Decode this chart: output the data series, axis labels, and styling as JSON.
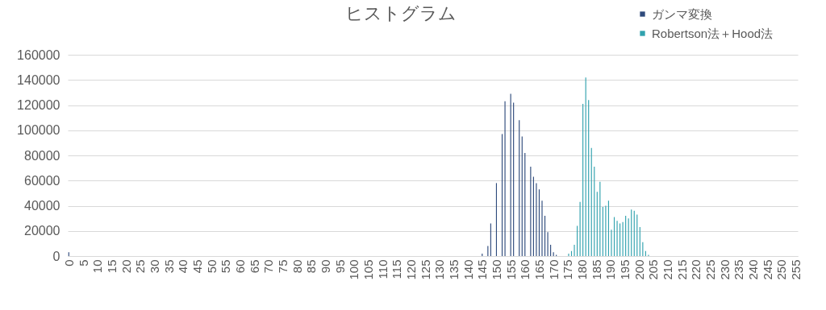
{
  "chart_data": {
    "type": "bar",
    "title": "ヒストグラム",
    "categories": [
      "0",
      null,
      null,
      null,
      null,
      "5",
      null,
      null,
      null,
      null,
      "10",
      null,
      null,
      null,
      null,
      "15",
      null,
      null,
      null,
      null,
      "20",
      null,
      null,
      null,
      null,
      "25",
      null,
      null,
      null,
      null,
      "30",
      null,
      null,
      null,
      null,
      "35",
      null,
      null,
      null,
      null,
      "40",
      null,
      null,
      null,
      null,
      "45",
      null,
      null,
      null,
      null,
      "50",
      null,
      null,
      null,
      null,
      "55",
      null,
      null,
      null,
      null,
      "60",
      null,
      null,
      null,
      null,
      "65",
      null,
      null,
      null,
      null,
      "70",
      null,
      null,
      null,
      null,
      "75",
      null,
      null,
      null,
      null,
      "80",
      null,
      null,
      null,
      null,
      "85",
      null,
      null,
      null,
      null,
      "90",
      null,
      null,
      null,
      null,
      "95",
      null,
      null,
      null,
      null,
      "100",
      null,
      null,
      null,
      null,
      "105",
      null,
      null,
      null,
      null,
      "110",
      null,
      null,
      null,
      null,
      "115",
      null,
      null,
      null,
      null,
      "120",
      null,
      null,
      null,
      null,
      "125",
      null,
      null,
      null,
      null,
      "130",
      null,
      null,
      null,
      null,
      "135",
      null,
      null,
      null,
      null,
      "140",
      null,
      null,
      null,
      null,
      "145",
      null,
      null,
      null,
      null,
      "150",
      null,
      null,
      null,
      null,
      "155",
      null,
      null,
      null,
      null,
      "160",
      null,
      null,
      null,
      null,
      "165",
      null,
      null,
      null,
      null,
      "170",
      null,
      null,
      null,
      null,
      "175",
      null,
      null,
      null,
      null,
      "180",
      null,
      null,
      null,
      null,
      "185",
      null,
      null,
      null,
      null,
      "190",
      null,
      null,
      null,
      null,
      "195",
      null,
      null,
      null,
      null,
      "200",
      null,
      null,
      null,
      null,
      "205",
      null,
      null,
      null,
      null,
      "210",
      null,
      null,
      null,
      null,
      "215",
      null,
      null,
      null,
      null,
      "220",
      null,
      null,
      null,
      null,
      "225",
      null,
      null,
      null,
      null,
      "230",
      null,
      null,
      null,
      null,
      "235",
      null,
      null,
      null,
      null,
      "240",
      null,
      null,
      null,
      null,
      "245",
      null,
      null,
      null,
      null,
      "250",
      null,
      null,
      null,
      null,
      "255"
    ],
    "series": [
      {
        "name": "ガンマ変換",
        "color": "#2f4b7c",
        "values": [
          3000,
          0,
          0,
          0,
          0,
          0,
          0,
          0,
          0,
          0,
          0,
          0,
          0,
          0,
          0,
          0,
          0,
          0,
          0,
          0,
          0,
          0,
          0,
          0,
          0,
          0,
          0,
          0,
          0,
          0,
          0,
          0,
          0,
          0,
          0,
          0,
          0,
          0,
          0,
          0,
          0,
          0,
          0,
          0,
          0,
          0,
          0,
          0,
          0,
          0,
          0,
          0,
          0,
          0,
          0,
          0,
          0,
          0,
          0,
          0,
          0,
          0,
          0,
          0,
          0,
          0,
          0,
          0,
          0,
          0,
          0,
          0,
          0,
          0,
          0,
          0,
          0,
          0,
          0,
          0,
          0,
          0,
          0,
          0,
          0,
          0,
          0,
          0,
          0,
          0,
          0,
          0,
          0,
          0,
          0,
          0,
          0,
          0,
          0,
          0,
          0,
          0,
          0,
          0,
          0,
          0,
          0,
          0,
          0,
          0,
          0,
          0,
          0,
          0,
          0,
          0,
          0,
          0,
          0,
          0,
          0,
          0,
          0,
          0,
          0,
          0,
          0,
          0,
          0,
          0,
          0,
          0,
          0,
          0,
          0,
          0,
          0,
          0,
          0,
          0,
          0,
          0,
          0,
          0,
          0,
          2000,
          0,
          8000,
          26000,
          0,
          58000,
          0,
          97000,
          123000,
          0,
          129000,
          122000,
          0,
          108000,
          95000,
          82000,
          0,
          71000,
          63000,
          58000,
          53000,
          44000,
          32000,
          19000,
          9000,
          3000,
          1000,
          0,
          0,
          0,
          0,
          0,
          0,
          0,
          0,
          0,
          0,
          0,
          0,
          0,
          0,
          0,
          0,
          0,
          0,
          0,
          0,
          0,
          0,
          0,
          0,
          0,
          0,
          0,
          0,
          0,
          0,
          0,
          0,
          0,
          0,
          0,
          0,
          0,
          0,
          0,
          0,
          0,
          0,
          0,
          0,
          0,
          0,
          0,
          0,
          0,
          0,
          0,
          0,
          0,
          0,
          0,
          0,
          0,
          0,
          0,
          0,
          0,
          0,
          0,
          0,
          0,
          0,
          0,
          0,
          0,
          0,
          0,
          0,
          0,
          0,
          0,
          0,
          0,
          0,
          0,
          0,
          0,
          0,
          0,
          0
        ]
      },
      {
        "name": "Robertson法＋Hood法",
        "color": "#31a2ae",
        "values": [
          0,
          0,
          0,
          0,
          0,
          0,
          0,
          0,
          0,
          0,
          0,
          0,
          0,
          0,
          0,
          0,
          0,
          0,
          0,
          0,
          0,
          0,
          0,
          0,
          0,
          0,
          0,
          0,
          0,
          0,
          0,
          0,
          0,
          0,
          0,
          0,
          0,
          0,
          0,
          0,
          0,
          0,
          0,
          0,
          0,
          0,
          0,
          0,
          0,
          0,
          0,
          0,
          0,
          0,
          0,
          0,
          0,
          0,
          0,
          0,
          0,
          0,
          0,
          0,
          0,
          0,
          0,
          0,
          0,
          0,
          0,
          0,
          0,
          0,
          0,
          0,
          0,
          0,
          0,
          0,
          0,
          0,
          0,
          0,
          0,
          0,
          0,
          0,
          0,
          0,
          0,
          0,
          0,
          0,
          0,
          0,
          0,
          0,
          0,
          0,
          0,
          0,
          0,
          0,
          0,
          0,
          0,
          0,
          0,
          0,
          0,
          0,
          0,
          0,
          0,
          0,
          0,
          0,
          0,
          0,
          0,
          0,
          0,
          0,
          0,
          0,
          0,
          0,
          0,
          0,
          0,
          0,
          0,
          0,
          0,
          0,
          0,
          0,
          0,
          0,
          0,
          0,
          0,
          0,
          0,
          0,
          0,
          0,
          0,
          0,
          0,
          0,
          0,
          0,
          0,
          0,
          0,
          0,
          0,
          0,
          0,
          0,
          0,
          0,
          0,
          0,
          0,
          0,
          0,
          0,
          0,
          0,
          0,
          0,
          0,
          2000,
          4000,
          9000,
          24000,
          43000,
          121000,
          142000,
          124000,
          86000,
          71000,
          51000,
          59000,
          39000,
          40000,
          44000,
          21000,
          31000,
          28000,
          26000,
          27000,
          32000,
          30000,
          37000,
          36000,
          33000,
          23000,
          11000,
          4000,
          1000,
          0,
          0,
          0,
          0,
          0,
          0,
          0,
          0,
          0,
          0,
          0,
          0,
          0,
          0,
          0,
          0,
          0,
          0,
          0,
          0,
          0,
          0,
          0,
          0,
          0,
          0,
          0,
          0,
          0,
          0,
          0,
          0,
          0,
          0,
          0,
          0,
          0,
          0,
          0,
          0,
          0,
          0,
          0,
          0,
          0,
          0,
          0,
          0,
          0,
          0,
          0,
          0
        ]
      }
    ],
    "ylim": [
      0,
      160000
    ],
    "yticks": [
      0,
      20000,
      40000,
      60000,
      80000,
      100000,
      120000,
      140000,
      160000
    ],
    "grid": "y",
    "legend": "top right"
  }
}
